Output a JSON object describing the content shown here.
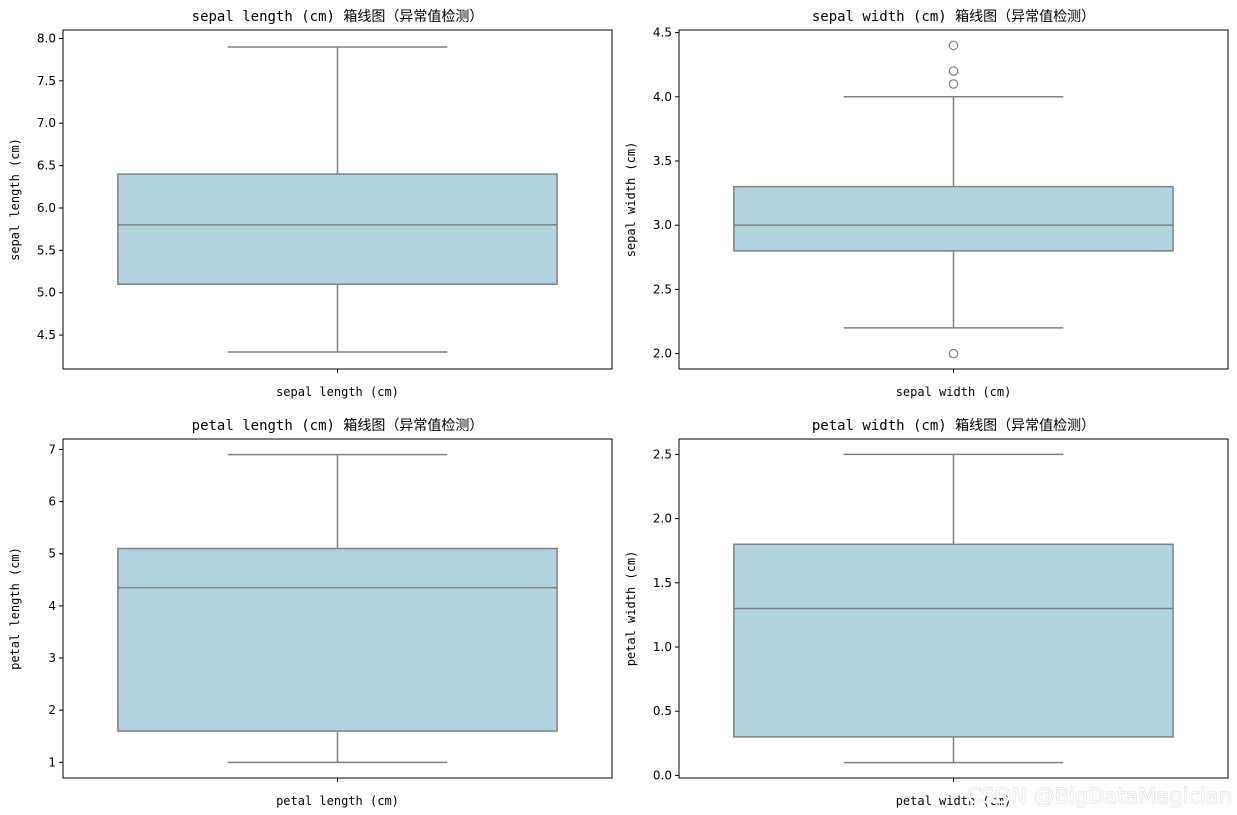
{
  "chart_data": [
    {
      "type": "box",
      "title": "sepal length (cm) 箱线图（异常值检测）",
      "xlabel": "sepal length (cm)",
      "ylabel": "sepal length (cm)",
      "ylim": [
        4.1,
        8.1
      ],
      "yticks": [
        "4.5",
        "5.0",
        "5.5",
        "6.0",
        "6.5",
        "7.0",
        "7.5",
        "8.0"
      ],
      "whisker_low": 4.3,
      "q1": 5.1,
      "median": 5.8,
      "q3": 6.4,
      "whisker_high": 7.9,
      "outliers": []
    },
    {
      "type": "box",
      "title": "sepal width (cm) 箱线图（异常值检测）",
      "xlabel": "sepal width (cm)",
      "ylabel": "sepal width (cm)",
      "ylim": [
        1.88,
        4.52
      ],
      "yticks": [
        "2.0",
        "2.5",
        "3.0",
        "3.5",
        "4.0",
        "4.5"
      ],
      "whisker_low": 2.2,
      "q1": 2.8,
      "median": 3.0,
      "q3": 3.3,
      "whisker_high": 4.0,
      "outliers": [
        2.0,
        4.1,
        4.2,
        4.4
      ]
    },
    {
      "type": "box",
      "title": "petal length (cm) 箱线图（异常值检测）",
      "xlabel": "petal length (cm)",
      "ylabel": "petal length (cm)",
      "ylim": [
        0.7,
        7.2
      ],
      "yticks": [
        "1",
        "2",
        "3",
        "4",
        "5",
        "6",
        "7"
      ],
      "whisker_low": 1.0,
      "q1": 1.6,
      "median": 4.35,
      "q3": 5.1,
      "whisker_high": 6.9,
      "outliers": []
    },
    {
      "type": "box",
      "title": "petal width (cm) 箱线图（异常值检测）",
      "xlabel": "petal width (cm)",
      "ylabel": "petal width (cm)",
      "ylim": [
        -0.02,
        2.62
      ],
      "yticks": [
        "0.0",
        "0.5",
        "1.0",
        "1.5",
        "2.0",
        "2.5"
      ],
      "whisker_low": 0.1,
      "q1": 0.3,
      "median": 1.3,
      "q3": 1.8,
      "whisker_high": 2.5,
      "outliers": []
    }
  ],
  "style": {
    "box_fill": "#b1d4e0",
    "line_color": "#808080",
    "outlier_fill": "#ffffff",
    "frame_color": "#000000"
  },
  "watermark": "CSDN @BigDataMagician"
}
